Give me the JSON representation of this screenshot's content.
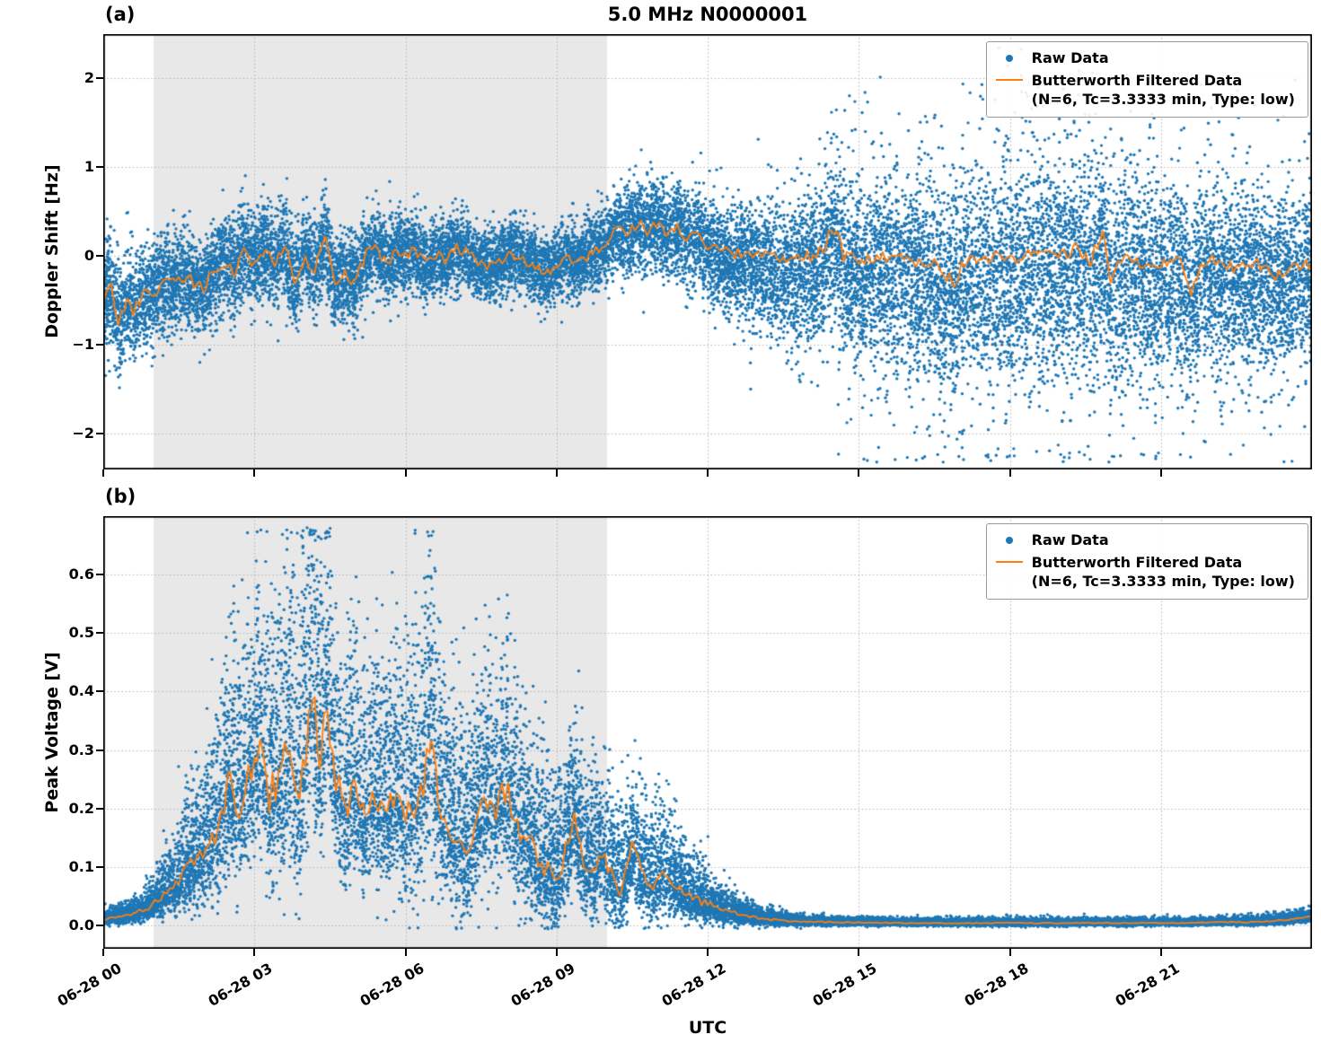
{
  "figure": {
    "title": "5.0 MHz N0000001",
    "xlabel": "UTC",
    "panel_a_tag": "(a)",
    "panel_b_tag": "(b)",
    "colors": {
      "raw": "#1f77b4",
      "filtered": "#ff7f0e",
      "shade": "#e8e8e8",
      "grid": "#b4b4b4",
      "frame": "#000000"
    },
    "legend": {
      "raw_label": "Raw Data",
      "filtered_line1": "Butterworth Filtered Data",
      "filtered_line2": "(N=6, Tc=3.3333 min, Type: low)"
    }
  },
  "render": {
    "seed": 11
  },
  "chart_data": [
    {
      "type": "scatter",
      "panel": "a",
      "title": "5.0 MHz N0000001",
      "ylabel": "Doppler Shift [Hz]",
      "xlabel": "UTC",
      "grid": true,
      "legend_loc": "upper right",
      "xlim_hours": [
        0,
        24
      ],
      "ylim": [
        -2.4,
        2.5
      ],
      "yticks": [
        -2,
        -1,
        0,
        1,
        2
      ],
      "ytick_labels": [
        "−2",
        "−1",
        "0",
        "1",
        "2"
      ],
      "xtick_hours": [
        0,
        3,
        6,
        9,
        12,
        15,
        18,
        21
      ],
      "xtick_labels": [
        "06-28 00",
        "06-28 03",
        "06-28 06",
        "06-28 09",
        "06-28 12",
        "06-28 15",
        "06-28 18",
        "06-28 21"
      ],
      "shaded_region_hours": [
        1.0,
        10.0
      ],
      "series": [
        {
          "name": "Raw Data",
          "style": "scatter",
          "color": "#1f77b4",
          "n_points": 20000,
          "envelope": {
            "x": [
              0,
              1,
              2,
              3,
              4,
              5,
              6,
              7,
              8,
              9,
              10,
              10.5,
              11,
              11.5,
              12,
              12.5,
              13,
              13.5,
              14,
              14.5,
              15,
              16,
              17,
              18,
              19,
              20,
              21,
              22,
              23,
              24
            ],
            "spread": [
              0.32,
              0.27,
              0.26,
              0.27,
              0.26,
              0.24,
              0.22,
              0.2,
              0.2,
              0.2,
              0.22,
              0.24,
              0.24,
              0.25,
              0.28,
              0.3,
              0.32,
              0.35,
              0.38,
              0.42,
              0.45,
              0.5,
              0.52,
              0.52,
              0.52,
              0.5,
              0.5,
              0.48,
              0.45,
              0.42
            ],
            "bias": [
              0,
              0,
              0,
              0,
              0,
              0,
              0,
              0,
              0,
              0,
              0,
              0,
              0,
              0,
              -0.05,
              -0.08,
              -0.1,
              -0.12,
              -0.15,
              -0.15,
              -0.15,
              -0.18,
              -0.2,
              -0.2,
              -0.2,
              -0.2,
              -0.2,
              -0.18,
              -0.15,
              -0.12
            ],
            "outlier_prob": [
              0.004,
              0.003,
              0.003,
              0.004,
              0.003,
              0.003,
              0.003,
              0.003,
              0.003,
              0.004,
              0.01,
              0.015,
              0.02,
              0.02,
              0.03,
              0.04,
              0.05,
              0.07,
              0.09,
              0.1,
              0.12,
              0.15,
              0.17,
              0.18,
              0.18,
              0.17,
              0.16,
              0.14,
              0.12,
              0.1
            ],
            "outlier_scale": [
              0.25,
              0.2,
              0.2,
              0.2,
              0.2,
              0.2,
              0.2,
              0.2,
              0.2,
              0.25,
              0.3,
              0.35,
              0.35,
              0.4,
              0.45,
              0.5,
              0.55,
              0.6,
              0.65,
              0.7,
              0.75,
              0.8,
              0.85,
              0.85,
              0.85,
              0.85,
              0.8,
              0.8,
              0.75,
              0.7
            ],
            "up_factor": 1.0,
            "down_factor": 1.0,
            "clamp": [
              -2.32,
              2.42
            ]
          }
        },
        {
          "name": "Butterworth Filtered Data (N=6, Tc=3.3333 min, Type: low)",
          "style": "line",
          "color": "#ff7f0e",
          "jitter_cap": 0.075,
          "x": [
            0.0,
            0.15,
            0.3,
            0.45,
            0.6,
            0.8,
            1.0,
            1.2,
            1.4,
            1.6,
            1.8,
            2.0,
            2.2,
            2.4,
            2.6,
            2.8,
            3.0,
            3.2,
            3.4,
            3.6,
            3.8,
            4.0,
            4.2,
            4.4,
            4.6,
            4.8,
            5.0,
            5.2,
            5.4,
            5.6,
            5.8,
            6.0,
            6.2,
            6.4,
            6.6,
            6.8,
            7.0,
            7.2,
            7.4,
            7.6,
            7.8,
            8.0,
            8.2,
            8.4,
            8.6,
            8.8,
            9.0,
            9.2,
            9.4,
            9.6,
            9.8,
            10.0,
            10.2,
            10.4,
            10.6,
            10.8,
            11.0,
            11.2,
            11.4,
            11.6,
            11.8,
            12.0,
            12.2,
            12.5,
            13.0,
            13.5,
            14.0,
            14.3,
            14.45,
            14.55,
            14.7,
            15.0,
            15.5,
            16.0,
            16.5,
            16.9,
            17.1,
            17.5,
            18.0,
            18.5,
            19.0,
            19.3,
            19.6,
            19.85,
            20.0,
            20.15,
            20.5,
            21.0,
            21.4,
            21.6,
            21.8,
            22.0,
            22.5,
            23.0,
            23.3,
            23.6,
            24.0
          ],
          "y": [
            -0.5,
            -0.35,
            -0.75,
            -0.5,
            -0.62,
            -0.45,
            -0.42,
            -0.3,
            -0.28,
            -0.22,
            -0.3,
            -0.38,
            -0.15,
            -0.05,
            -0.18,
            0.08,
            -0.12,
            0.1,
            -0.08,
            0.15,
            -0.32,
            0.0,
            -0.18,
            0.22,
            -0.35,
            -0.22,
            -0.3,
            0.0,
            0.1,
            -0.08,
            0.05,
            0.0,
            0.08,
            -0.1,
            0.02,
            -0.05,
            0.1,
            0.05,
            -0.05,
            -0.12,
            -0.08,
            -0.02,
            0.02,
            -0.06,
            -0.1,
            -0.18,
            -0.1,
            -0.02,
            -0.08,
            0.0,
            0.05,
            0.12,
            0.3,
            0.24,
            0.36,
            0.3,
            0.36,
            0.26,
            0.32,
            0.2,
            0.26,
            0.15,
            0.06,
            0.02,
            0.0,
            -0.04,
            0.0,
            0.05,
            0.35,
            0.3,
            0.0,
            -0.05,
            0.0,
            -0.06,
            -0.1,
            -0.28,
            -0.05,
            0.0,
            -0.05,
            0.06,
            0.0,
            0.1,
            -0.06,
            0.32,
            -0.3,
            0.0,
            -0.05,
            -0.1,
            0.0,
            -0.42,
            -0.1,
            -0.05,
            -0.15,
            -0.1,
            -0.25,
            -0.12,
            -0.1
          ]
        }
      ]
    },
    {
      "type": "scatter",
      "panel": "b",
      "title": "",
      "ylabel": "Peak Voltage [V]",
      "xlabel": "UTC",
      "grid": true,
      "legend_loc": "upper right",
      "xlim_hours": [
        0,
        24
      ],
      "ylim": [
        -0.04,
        0.7
      ],
      "yticks": [
        0.0,
        0.1,
        0.2,
        0.3,
        0.4,
        0.5,
        0.6
      ],
      "ytick_labels": [
        "0.0",
        "0.1",
        "0.2",
        "0.3",
        "0.4",
        "0.5",
        "0.6"
      ],
      "xtick_hours": [
        0,
        3,
        6,
        9,
        12,
        15,
        18,
        21
      ],
      "xtick_labels": [
        "06-28 00",
        "06-28 03",
        "06-28 06",
        "06-28 09",
        "06-28 12",
        "06-28 15",
        "06-28 18",
        "06-28 21"
      ],
      "shaded_region_hours": [
        1.0,
        10.0
      ],
      "series": [
        {
          "name": "Raw Data",
          "style": "scatter",
          "color": "#1f77b4",
          "n_points": 20000,
          "envelope": {
            "x": [
              0,
              0.5,
              1,
              1.5,
              2,
              2.5,
              3,
              3.5,
              4,
              4.5,
              5,
              5.5,
              6,
              6.5,
              7,
              7.5,
              8,
              8.5,
              9,
              9.5,
              10,
              10.5,
              11,
              11.5,
              12,
              12.5,
              13,
              14,
              15,
              16,
              18,
              20,
              22,
              23,
              24
            ],
            "spread": [
              0.006,
              0.008,
              0.015,
              0.035,
              0.06,
              0.09,
              0.1,
              0.11,
              0.12,
              0.1,
              0.09,
              0.09,
              0.09,
              0.11,
              0.08,
              0.08,
              0.09,
              0.07,
              0.06,
              0.06,
              0.05,
              0.05,
              0.045,
              0.03,
              0.02,
              0.012,
              0.007,
              0.004,
              0.003,
              0.003,
              0.003,
              0.003,
              0.003,
              0.004,
              0.005
            ],
            "outlier_prob": [
              0.002,
              0.002,
              0.004,
              0.01,
              0.02,
              0.025,
              0.025,
              0.025,
              0.025,
              0.025,
              0.025,
              0.025,
              0.025,
              0.03,
              0.025,
              0.025,
              0.025,
              0.02,
              0.02,
              0.02,
              0.018,
              0.018,
              0.015,
              0.01,
              0.008,
              0.005,
              0.003,
              0.002,
              0.002,
              0.002,
              0.002,
              0.002,
              0.002,
              0.002,
              0.002
            ],
            "outlier_scale": [
              0.01,
              0.013,
              0.024,
              0.056,
              0.1,
              0.14,
              0.16,
              0.18,
              0.19,
              0.16,
              0.14,
              0.14,
              0.14,
              0.18,
              0.13,
              0.13,
              0.14,
              0.11,
              0.1,
              0.1,
              0.08,
              0.08,
              0.07,
              0.05,
              0.03,
              0.02,
              0.011,
              0.006,
              0.005,
              0.005,
              0.005,
              0.005,
              0.005,
              0.006,
              0.008
            ],
            "up_factor": 1.4,
            "down_factor": 0.75,
            "one_sided": true,
            "clamp": [
              -0.006,
              0.68
            ]
          }
        },
        {
          "name": "Butterworth Filtered Data (N=6, Tc=3.3333 min, Type: low)",
          "style": "line",
          "color": "#ff7f0e",
          "jitter_cap": 0.035,
          "x": [
            0.0,
            0.3,
            0.6,
            0.9,
            1.1,
            1.3,
            1.5,
            1.7,
            1.9,
            2.1,
            2.3,
            2.5,
            2.7,
            2.9,
            3.1,
            3.3,
            3.5,
            3.7,
            3.9,
            4.05,
            4.15,
            4.3,
            4.45,
            4.6,
            4.8,
            5.0,
            5.2,
            5.4,
            5.6,
            5.8,
            6.0,
            6.2,
            6.35,
            6.5,
            6.65,
            6.8,
            7.0,
            7.2,
            7.4,
            7.6,
            7.8,
            8.0,
            8.2,
            8.4,
            8.6,
            8.8,
            9.0,
            9.2,
            9.35,
            9.5,
            9.7,
            9.9,
            10.1,
            10.3,
            10.5,
            10.7,
            10.9,
            11.1,
            11.3,
            11.6,
            11.9,
            12.2,
            12.6,
            13.0,
            13.5,
            14.0,
            15.0,
            16.0,
            17.0,
            18.0,
            19.0,
            20.0,
            21.0,
            22.0,
            23.0,
            23.5,
            24.0
          ],
          "y": [
            0.01,
            0.015,
            0.02,
            0.03,
            0.045,
            0.06,
            0.08,
            0.1,
            0.11,
            0.13,
            0.18,
            0.24,
            0.2,
            0.27,
            0.3,
            0.22,
            0.26,
            0.3,
            0.24,
            0.32,
            0.4,
            0.28,
            0.38,
            0.25,
            0.2,
            0.24,
            0.18,
            0.22,
            0.19,
            0.23,
            0.18,
            0.21,
            0.24,
            0.34,
            0.23,
            0.18,
            0.16,
            0.14,
            0.17,
            0.22,
            0.2,
            0.23,
            0.18,
            0.15,
            0.12,
            0.1,
            0.08,
            0.13,
            0.19,
            0.12,
            0.09,
            0.13,
            0.08,
            0.06,
            0.13,
            0.09,
            0.07,
            0.1,
            0.07,
            0.05,
            0.04,
            0.03,
            0.02,
            0.012,
            0.008,
            0.006,
            0.005,
            0.004,
            0.004,
            0.004,
            0.004,
            0.004,
            0.004,
            0.005,
            0.006,
            0.01,
            0.015
          ]
        }
      ]
    }
  ]
}
